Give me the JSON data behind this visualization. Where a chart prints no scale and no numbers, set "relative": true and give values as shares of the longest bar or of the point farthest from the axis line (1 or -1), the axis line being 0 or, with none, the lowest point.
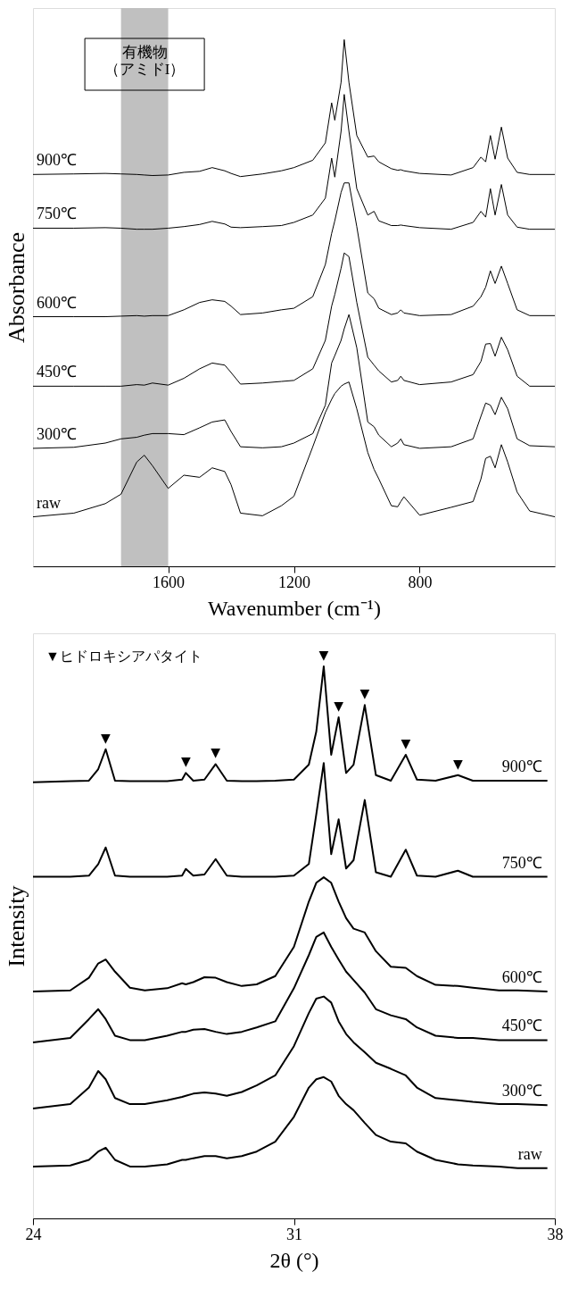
{
  "chart_data": [
    {
      "type": "line",
      "relative": true,
      "xlabel": "Wavenumber (cm⁻¹)",
      "ylabel": "Absorbance",
      "xlim": [
        2030,
        370
      ],
      "xticks": [
        1600,
        1200,
        800
      ],
      "x": [
        2030,
        1900,
        1800,
        1750,
        1700,
        1676,
        1650,
        1600,
        1550,
        1500,
        1460,
        1420,
        1400,
        1370,
        1300,
        1240,
        1200,
        1140,
        1100,
        1080,
        1070,
        1050,
        1040,
        1025,
        1000,
        965,
        945,
        930,
        890,
        870,
        860,
        850,
        800,
        700,
        630,
        605,
        590,
        575,
        560,
        540,
        520,
        490,
        450,
        370
      ],
      "bands": [
        {
          "axis": "x",
          "from": 1750,
          "to": 1600,
          "label": "有機物（アミドI）",
          "color": "#c0c0c0"
        }
      ],
      "series": [
        {
          "name": "900℃",
          "color": "#000000",
          "values": [
            0.744,
            0.745,
            0.746,
            0.745,
            0.744,
            0.743,
            0.742,
            0.743,
            0.748,
            0.75,
            0.757,
            0.751,
            0.746,
            0.74,
            0.745,
            0.751,
            0.757,
            0.771,
            0.804,
            0.88,
            0.847,
            0.919,
            1.0,
            0.919,
            0.818,
            0.777,
            0.779,
            0.768,
            0.755,
            0.752,
            0.753,
            0.751,
            0.746,
            0.743,
            0.757,
            0.777,
            0.768,
            0.818,
            0.773,
            0.834,
            0.775,
            0.748,
            0.744,
            0.744
          ]
        },
        {
          "name": "750℃",
          "color": "#000000",
          "values": [
            0.642,
            0.642,
            0.643,
            0.642,
            0.64,
            0.64,
            0.64,
            0.642,
            0.645,
            0.649,
            0.655,
            0.65,
            0.644,
            0.643,
            0.645,
            0.647,
            0.653,
            0.667,
            0.699,
            0.775,
            0.739,
            0.826,
            0.896,
            0.826,
            0.717,
            0.667,
            0.674,
            0.656,
            0.647,
            0.647,
            0.648,
            0.647,
            0.643,
            0.64,
            0.653,
            0.674,
            0.663,
            0.717,
            0.667,
            0.725,
            0.667,
            0.644,
            0.64,
            0.64
          ]
        },
        {
          "name": "600℃",
          "color": "#000000",
          "values": [
            0.474,
            0.474,
            0.474,
            0.475,
            0.476,
            0.475,
            0.476,
            0.476,
            0.487,
            0.501,
            0.506,
            0.503,
            0.494,
            0.478,
            0.481,
            0.487,
            0.49,
            0.512,
            0.573,
            0.632,
            0.656,
            0.71,
            0.728,
            0.728,
            0.645,
            0.519,
            0.508,
            0.49,
            0.478,
            0.481,
            0.487,
            0.481,
            0.476,
            0.478,
            0.494,
            0.512,
            0.53,
            0.561,
            0.537,
            0.57,
            0.537,
            0.487,
            0.476,
            0.476
          ]
        },
        {
          "name": "450℃",
          "color": "#000000",
          "values": [
            0.342,
            0.342,
            0.342,
            0.342,
            0.345,
            0.344,
            0.348,
            0.344,
            0.357,
            0.375,
            0.386,
            0.382,
            0.368,
            0.346,
            0.348,
            0.351,
            0.353,
            0.375,
            0.429,
            0.494,
            0.516,
            0.566,
            0.595,
            0.588,
            0.501,
            0.397,
            0.382,
            0.371,
            0.35,
            0.353,
            0.361,
            0.353,
            0.345,
            0.35,
            0.364,
            0.389,
            0.422,
            0.423,
            0.399,
            0.435,
            0.411,
            0.361,
            0.342,
            0.342
          ]
        },
        {
          "name": "300℃",
          "color": "#000000",
          "values": [
            0.224,
            0.226,
            0.234,
            0.242,
            0.245,
            0.249,
            0.252,
            0.252,
            0.25,
            0.263,
            0.274,
            0.278,
            0.256,
            0.227,
            0.225,
            0.227,
            0.234,
            0.252,
            0.306,
            0.386,
            0.4,
            0.429,
            0.451,
            0.478,
            0.415,
            0.274,
            0.265,
            0.249,
            0.227,
            0.234,
            0.242,
            0.231,
            0.224,
            0.227,
            0.242,
            0.285,
            0.31,
            0.306,
            0.288,
            0.321,
            0.299,
            0.242,
            0.229,
            0.227
          ]
        },
        {
          "name": "raw",
          "color": "#000000",
          "values": [
            0.094,
            0.101,
            0.119,
            0.137,
            0.198,
            0.211,
            0.191,
            0.148,
            0.173,
            0.169,
            0.187,
            0.18,
            0.155,
            0.101,
            0.096,
            0.115,
            0.133,
            0.227,
            0.292,
            0.317,
            0.328,
            0.342,
            0.346,
            0.35,
            0.299,
            0.216,
            0.184,
            0.166,
            0.115,
            0.113,
            0.123,
            0.132,
            0.097,
            0.112,
            0.123,
            0.166,
            0.205,
            0.209,
            0.187,
            0.231,
            0.198,
            0.141,
            0.105,
            0.094
          ]
        }
      ]
    },
    {
      "type": "line",
      "relative": true,
      "xlabel": "2θ (°)",
      "ylabel": "Intensity",
      "xlim": [
        24,
        38
      ],
      "xticks": [
        24,
        31,
        38
      ],
      "x": [
        24.0,
        25.0,
        25.5,
        25.75,
        25.95,
        26.2,
        26.6,
        27.0,
        27.6,
        28.0,
        28.1,
        28.3,
        28.6,
        28.9,
        29.2,
        29.6,
        30.0,
        30.5,
        31.0,
        31.4,
        31.6,
        31.8,
        32.0,
        32.2,
        32.4,
        32.6,
        32.9,
        33.2,
        33.6,
        34.0,
        34.3,
        34.8,
        35.4,
        35.8,
        36.5,
        37.0,
        37.8
      ],
      "annotations": [
        "▼ヒドロキシアパタイト",
        {
          "text": "▼",
          "x": 25.95,
          "y": 0.85
        },
        {
          "text": "▼",
          "x": 28.1,
          "y": 0.807
        },
        {
          "text": "▼",
          "x": 28.9,
          "y": 0.823
        },
        {
          "text": "▼",
          "x": 31.8,
          "y": 1.0
        },
        {
          "text": "▼",
          "x": 32.2,
          "y": 0.908
        },
        {
          "text": "▼",
          "x": 32.9,
          "y": 0.93
        },
        {
          "text": "▼",
          "x": 34.0,
          "y": 0.84
        },
        {
          "text": "▼",
          "x": 35.4,
          "y": 0.803
        }
      ],
      "series": [
        {
          "name": "900℃",
          "color": "#000000",
          "values": [
            0.79,
            0.792,
            0.793,
            0.814,
            0.85,
            0.793,
            0.792,
            0.792,
            0.792,
            0.795,
            0.807,
            0.793,
            0.795,
            0.823,
            0.793,
            0.792,
            0.792,
            0.793,
            0.795,
            0.822,
            0.882,
            1.0,
            0.84,
            0.908,
            0.807,
            0.822,
            0.93,
            0.803,
            0.793,
            0.84,
            0.795,
            0.793,
            0.803,
            0.793,
            0.793,
            0.793,
            0.793
          ]
        },
        {
          "name": "750℃",
          "color": "#000000",
          "values": [
            0.619,
            0.619,
            0.621,
            0.642,
            0.672,
            0.621,
            0.619,
            0.619,
            0.619,
            0.621,
            0.633,
            0.621,
            0.623,
            0.651,
            0.621,
            0.619,
            0.619,
            0.619,
            0.621,
            0.642,
            0.732,
            0.825,
            0.66,
            0.723,
            0.634,
            0.649,
            0.758,
            0.627,
            0.619,
            0.668,
            0.621,
            0.619,
            0.63,
            0.619,
            0.619,
            0.619,
            0.619
          ]
        },
        {
          "name": "600℃",
          "color": "#000000",
          "values": [
            0.411,
            0.413,
            0.436,
            0.462,
            0.469,
            0.447,
            0.418,
            0.413,
            0.417,
            0.426,
            0.424,
            0.428,
            0.437,
            0.436,
            0.428,
            0.421,
            0.424,
            0.439,
            0.492,
            0.574,
            0.608,
            0.618,
            0.608,
            0.574,
            0.544,
            0.525,
            0.518,
            0.484,
            0.456,
            0.454,
            0.439,
            0.423,
            0.421,
            0.418,
            0.413,
            0.413,
            0.411
          ]
        },
        {
          "name": "450℃",
          "color": "#000000",
          "values": [
            0.319,
            0.327,
            0.361,
            0.379,
            0.361,
            0.331,
            0.323,
            0.323,
            0.331,
            0.338,
            0.338,
            0.342,
            0.343,
            0.338,
            0.334,
            0.338,
            0.346,
            0.357,
            0.417,
            0.477,
            0.51,
            0.518,
            0.492,
            0.469,
            0.447,
            0.432,
            0.409,
            0.379,
            0.368,
            0.361,
            0.346,
            0.331,
            0.327,
            0.327,
            0.323,
            0.323,
            0.323
          ]
        },
        {
          "name": "300℃",
          "color": "#000000",
          "values": [
            0.199,
            0.207,
            0.237,
            0.267,
            0.252,
            0.218,
            0.207,
            0.207,
            0.214,
            0.22,
            0.222,
            0.226,
            0.228,
            0.226,
            0.222,
            0.229,
            0.241,
            0.259,
            0.312,
            0.372,
            0.398,
            0.402,
            0.391,
            0.357,
            0.334,
            0.319,
            0.301,
            0.282,
            0.271,
            0.259,
            0.237,
            0.218,
            0.214,
            0.211,
            0.207,
            0.207,
            0.205
          ]
        },
        {
          "name": "raw",
          "color": "#000000",
          "values": [
            0.094,
            0.096,
            0.106,
            0.121,
            0.128,
            0.106,
            0.094,
            0.094,
            0.098,
            0.106,
            0.106,
            0.109,
            0.113,
            0.113,
            0.109,
            0.113,
            0.121,
            0.139,
            0.184,
            0.237,
            0.252,
            0.256,
            0.248,
            0.222,
            0.207,
            0.196,
            0.173,
            0.151,
            0.139,
            0.136,
            0.121,
            0.106,
            0.098,
            0.096,
            0.094,
            0.091,
            0.091
          ]
        }
      ]
    }
  ]
}
